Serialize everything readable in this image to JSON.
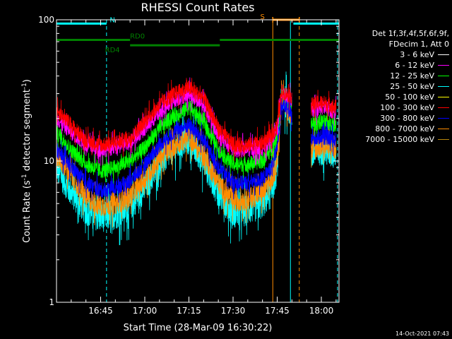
{
  "chart_data": {
    "type": "line",
    "title": "RHESSI Count Rates",
    "xlabel": "Start Time (28-Mar-09 16:30:22)",
    "ylabel_main": "Count Rate (s",
    "ylabel_exp": "-1",
    "ylabel_mid": " detector segment",
    "ylabel_exp2": "-1",
    "ylabel_end": ")",
    "yscale": "log",
    "ylim": [
      1,
      100
    ],
    "xlim_min": [
      0,
      96
    ],
    "y_ticks": [
      {
        "value": 1,
        "label": "1"
      },
      {
        "value": 10,
        "label": "10"
      },
      {
        "value": 100,
        "label": "100"
      }
    ],
    "x_ticks": [
      {
        "value": 15,
        "label": "16:45"
      },
      {
        "value": 30,
        "label": "17:00"
      },
      {
        "value": 45,
        "label": "17:15"
      },
      {
        "value": 60,
        "label": "17:30"
      },
      {
        "value": 75,
        "label": "17:45"
      },
      {
        "value": 90,
        "label": "18:00"
      }
    ],
    "gap_min": [
      80,
      86.5
    ],
    "series": [
      {
        "name": "3 - 6 keV",
        "color": "#ffffff",
        "values": []
      },
      {
        "name": "6 - 12 keV",
        "color": "#ff00ff",
        "x": [
          0,
          5,
          10,
          15,
          20,
          25,
          30,
          35,
          40,
          45,
          50,
          55,
          60,
          65,
          70,
          73,
          75,
          76.5,
          86.5,
          90,
          93,
          95
        ],
        "values": [
          20,
          16,
          13,
          12,
          12.5,
          13.5,
          17,
          22,
          27,
          30,
          25,
          15,
          12,
          12,
          12.5,
          14,
          17,
          30,
          23,
          24,
          23,
          22
        ]
      },
      {
        "name": "12 - 25 keV",
        "color": "#00ff00",
        "x": [
          0,
          5,
          10,
          15,
          20,
          25,
          30,
          35,
          40,
          45,
          50,
          55,
          60,
          65,
          70,
          73,
          75,
          76.5,
          86.5,
          90,
          93,
          95
        ],
        "values": [
          16,
          12,
          9.5,
          8.5,
          9,
          10,
          12.5,
          17,
          21,
          24,
          19,
          12,
          9.5,
          9.5,
          10,
          12,
          15,
          28,
          18,
          19,
          18.5,
          18
        ]
      },
      {
        "name": "25 - 50 keV",
        "color": "#00ffff",
        "x": [
          0,
          5,
          10,
          15,
          20,
          25,
          30,
          35,
          40,
          45,
          50,
          55,
          60,
          65,
          70,
          73,
          75,
          76.5,
          86.5,
          90,
          93,
          95
        ],
        "values": [
          9,
          6,
          4.5,
          4,
          4.2,
          4.8,
          6.5,
          9.5,
          12.5,
          14,
          10,
          6,
          4.3,
          4.5,
          5,
          6,
          9,
          30,
          11,
          12,
          11.5,
          11
        ]
      },
      {
        "name": "50 - 100 keV",
        "color": "#ffff00",
        "values": []
      },
      {
        "name": "100 - 300 keV",
        "color": "#ff0000",
        "x": [
          0,
          5,
          10,
          15,
          20,
          25,
          30,
          35,
          40,
          45,
          50,
          55,
          60,
          65,
          70,
          73,
          75,
          76.5,
          86.5,
          90,
          93,
          95
        ],
        "values": [
          23,
          18,
          14,
          13,
          13.5,
          14.5,
          19,
          25,
          30,
          33,
          28,
          17,
          13,
          13,
          13.5,
          15,
          18,
          31,
          25,
          26,
          25,
          24
        ]
      },
      {
        "name": "300 - 800 keV",
        "color": "#0000ff",
        "x": [
          0,
          5,
          10,
          15,
          20,
          25,
          30,
          35,
          40,
          45,
          50,
          55,
          60,
          65,
          70,
          73,
          75,
          76.5,
          86.5,
          90,
          93,
          95
        ],
        "values": [
          12,
          9,
          7,
          6.2,
          6.5,
          7.2,
          9.5,
          13,
          16,
          18,
          14,
          9,
          7,
          7,
          7.5,
          9,
          12,
          26,
          14,
          15,
          14.5,
          14
        ]
      },
      {
        "name": "800 - 7000 keV",
        "color": "#ff8c00",
        "x": [
          0,
          5,
          10,
          15,
          20,
          25,
          30,
          35,
          40,
          45,
          50,
          55,
          60,
          65,
          70,
          73,
          75,
          76.5,
          86.5,
          90,
          93,
          95
        ],
        "values": [
          11,
          8,
          5.5,
          4.8,
          5,
          5.6,
          7.5,
          10.5,
          13,
          15,
          11,
          7,
          5.2,
          5.4,
          6,
          7.2,
          10,
          28,
          12,
          12.8,
          12.3,
          12
        ]
      },
      {
        "name": "7000 - 15000 keV",
        "color": "#b8860b",
        "values": []
      }
    ],
    "vlines": [
      {
        "x": 0,
        "color": "#00ffff",
        "dash": false
      },
      {
        "x": 17,
        "color": "#00ffff",
        "dash": true
      },
      {
        "x": 73.5,
        "color": "#ff8c00",
        "dash": false
      },
      {
        "x": 79.5,
        "color": "#00ffff",
        "dash": false
      },
      {
        "x": 82.5,
        "color": "#ff8c00",
        "dash": true
      },
      {
        "x": 95.5,
        "color": "#00ffff",
        "dash": true
      }
    ],
    "flag_bars": [
      {
        "label": "N",
        "color": "#00ffff",
        "segments": [
          [
            0,
            17
          ],
          [
            80.5,
            96
          ]
        ],
        "level": 94,
        "label_x": 19
      },
      {
        "label": "RD0",
        "color": "#008000",
        "segments": [
          [
            0,
            25
          ],
          [
            55.5,
            96
          ]
        ],
        "level": 72,
        "label_x": 27.5
      },
      {
        "label": "RD4",
        "color": "#008000",
        "segments": [
          [
            25,
            55.5
          ]
        ],
        "level": 66,
        "label_x": 19
      },
      {
        "label": "S",
        "color": "#ff8c00",
        "segments": [
          [
            73.5,
            82.5
          ]
        ],
        "level": 100,
        "label_x": 70
      }
    ]
  },
  "legend": {
    "header_line1": "Det 1f,3f,4f,5f,6f,9f,",
    "header_line2": "FDecim 1, Att 0"
  },
  "stamp": "14-Oct-2021 07:43"
}
